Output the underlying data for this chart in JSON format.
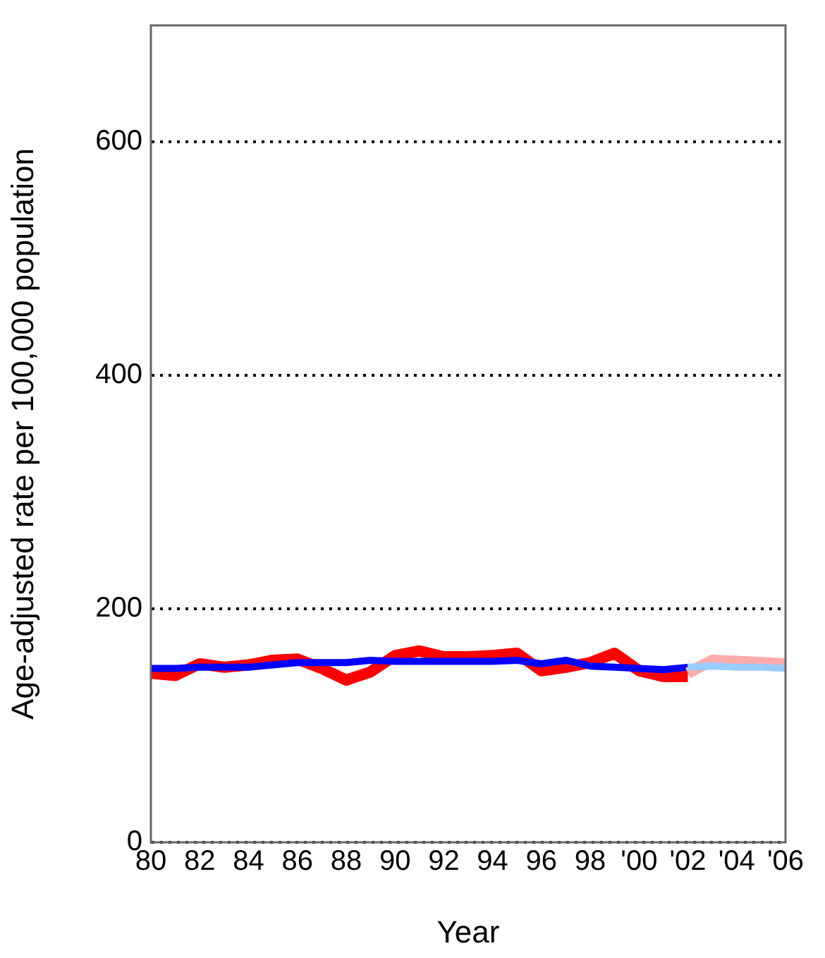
{
  "chart_data": {
    "type": "line",
    "xlabel": "Year",
    "ylabel": "Age-adjusted rate per 100,000 population",
    "xlim": [
      1980,
      2006
    ],
    "xticks": [
      {
        "value": 1980,
        "label": "80"
      },
      {
        "value": 1982,
        "label": "82"
      },
      {
        "value": 1984,
        "label": "84"
      },
      {
        "value": 1986,
        "label": "86"
      },
      {
        "value": 1988,
        "label": "88"
      },
      {
        "value": 1990,
        "label": "90"
      },
      {
        "value": 1992,
        "label": "92"
      },
      {
        "value": 1994,
        "label": "94"
      },
      {
        "value": 1996,
        "label": "96"
      },
      {
        "value": 1998,
        "label": "98"
      },
      {
        "value": 2000,
        "label": "'00"
      },
      {
        "value": 2002,
        "label": "'02"
      },
      {
        "value": 2004,
        "label": "'04"
      },
      {
        "value": 2006,
        "label": "'06"
      }
    ],
    "ylim": [
      0,
      700
    ],
    "yticks": [
      0,
      200,
      400,
      600
    ],
    "grid": "y",
    "line_style": "solid",
    "marker": "none",
    "legend": false,
    "series": [
      {
        "color": "#ff0000",
        "x": [
          1980,
          1981,
          1982,
          1983,
          1984,
          1985,
          1986,
          1987,
          1988,
          1989,
          1990,
          1991,
          1992,
          1993,
          1994,
          1995,
          1996,
          1997,
          1998,
          1999,
          2000,
          2001,
          2002
        ],
        "values": [
          145,
          143,
          153,
          150,
          152,
          156,
          157,
          149,
          139,
          146,
          160,
          164,
          159,
          159,
          160,
          162,
          147,
          150,
          154,
          162,
          147,
          142,
          142
        ]
      },
      {
        "color": "#0000ff",
        "x": [
          1980,
          1981,
          1982,
          1983,
          1984,
          1985,
          1986,
          1987,
          1988,
          1989,
          1990,
          1991,
          1992,
          1993,
          1994,
          1995,
          1996,
          1997,
          1998,
          1999,
          2000,
          2001,
          2002
        ],
        "values": [
          149,
          149,
          150,
          150,
          150,
          152,
          154,
          154,
          154,
          156,
          155,
          155,
          155,
          155,
          155,
          156,
          153,
          156,
          151,
          150,
          149,
          148,
          150
        ]
      },
      {
        "color": "#ffaaaa",
        "x": [
          2002,
          2003,
          2004,
          2005,
          2006
        ],
        "values": [
          145,
          156,
          155,
          154,
          153
        ]
      },
      {
        "color": "#99ccff",
        "x": [
          2002,
          2003,
          2004,
          2005,
          2006
        ],
        "values": [
          150,
          151,
          150,
          150,
          149
        ]
      }
    ]
  }
}
